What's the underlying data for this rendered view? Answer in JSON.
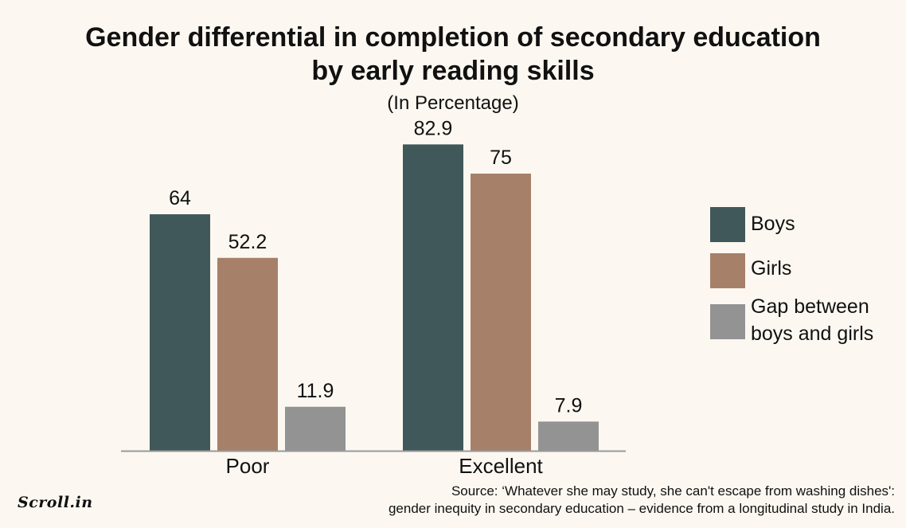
{
  "title_line1": "Gender differential in completion of secondary education",
  "title_line2": "by early reading skills",
  "subtitle": "(In Percentage)",
  "colors": {
    "boys": "#41585a",
    "girls": "#a7806a",
    "gap": "#939393",
    "background": "#fcf8f1"
  },
  "legend": [
    {
      "label": "Boys"
    },
    {
      "label": "Girls"
    },
    {
      "label_line1": "Gap between",
      "label_line2": "boys and girls"
    }
  ],
  "source_line1": "Source: ‘Whatever she may study, she can't escape from washing dishes':",
  "source_line2": "gender inequity in secondary education – evidence from a longitudinal study in India.",
  "logo": "Scroll.in",
  "chart_data": {
    "type": "bar",
    "title": "Gender differential in completion of secondary education by early reading skills",
    "subtitle": "(In Percentage)",
    "categories": [
      "Poor",
      "Excellent"
    ],
    "series": [
      {
        "name": "Boys",
        "values": [
          64,
          82.9
        ],
        "labels": [
          "64",
          "82.9"
        ]
      },
      {
        "name": "Girls",
        "values": [
          52.2,
          75
        ],
        "labels": [
          "52.2",
          "75"
        ]
      },
      {
        "name": "Gap between boys and girls",
        "values": [
          11.9,
          7.9
        ],
        "labels": [
          "11.9",
          "7.9"
        ]
      }
    ],
    "ylim": [
      0,
      100
    ],
    "grid": false,
    "legend_position": "right"
  }
}
